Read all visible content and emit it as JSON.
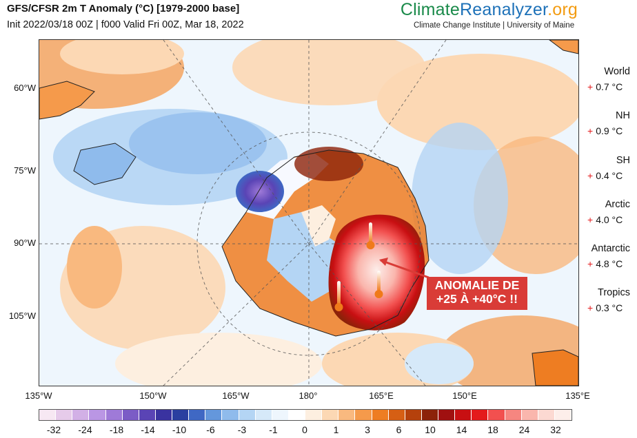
{
  "header": {
    "title": "GFS/CFSR 2m T Anomaly (°C) [1979-2000 base]",
    "subtitle": "Init 2022/03/18 00Z | f000 Valid Fri 00Z, Mar 18, 2022",
    "brand_part1": "Climate",
    "brand_part2": "Reanalyzer",
    "brand_part3": ".org",
    "brand_subtitle": "Climate Change Institute | University of Maine",
    "brand_colors": {
      "climate": "#1a8a4a",
      "reanalyzer": "#1d71b8",
      "org": "#f39c12"
    }
  },
  "lat_labels": [
    "60°W",
    "75°W",
    "90°W",
    "105°W"
  ],
  "lon_labels": [
    "135°W",
    "150°W",
    "165°W",
    "180°",
    "165°E",
    "150°E",
    "135°E"
  ],
  "stats": [
    {
      "name": "World",
      "sign": "+",
      "value": "0.7 °C"
    },
    {
      "name": "NH",
      "sign": "+",
      "value": "0.9 °C"
    },
    {
      "name": "SH",
      "sign": "+",
      "value": "0.4 °C"
    },
    {
      "name": "Arctic",
      "sign": "+",
      "value": "4.0 °C"
    },
    {
      "name": "Antarctic",
      "sign": "+",
      "value": "4.8 °C"
    },
    {
      "name": "Tropics",
      "sign": "+",
      "value": "0.3 °C"
    }
  ],
  "callout": {
    "line1": "ANOMALIE DE",
    "line2": "+25 À +40°C !!",
    "color": "#d93c37"
  },
  "colorbar": {
    "labels": [
      "-32",
      "-24",
      "-18",
      "-14",
      "-10",
      "-6",
      "-3",
      "-1",
      "0",
      "1",
      "3",
      "6",
      "10",
      "14",
      "18",
      "24",
      "32"
    ],
    "colors": [
      "#f7e8f3",
      "#e6cbea",
      "#d2b0e6",
      "#ba96e4",
      "#9f7ad8",
      "#7b5cc6",
      "#5a44b5",
      "#3a33a0",
      "#2a3fa0",
      "#3f68c4",
      "#6497dc",
      "#8fbbec",
      "#b4d5f4",
      "#d6e9f9",
      "#eef6fd",
      "#ffffff",
      "#fdefe0",
      "#fcd8b4",
      "#f9b97f",
      "#f59a4b",
      "#ee7d22",
      "#d65f14",
      "#b5410c",
      "#8c2209",
      "#a01010",
      "#c80f12",
      "#e41a1c",
      "#f2504f",
      "#f68680",
      "#fab6ad",
      "#fcd9d2",
      "#fdeeea"
    ]
  }
}
